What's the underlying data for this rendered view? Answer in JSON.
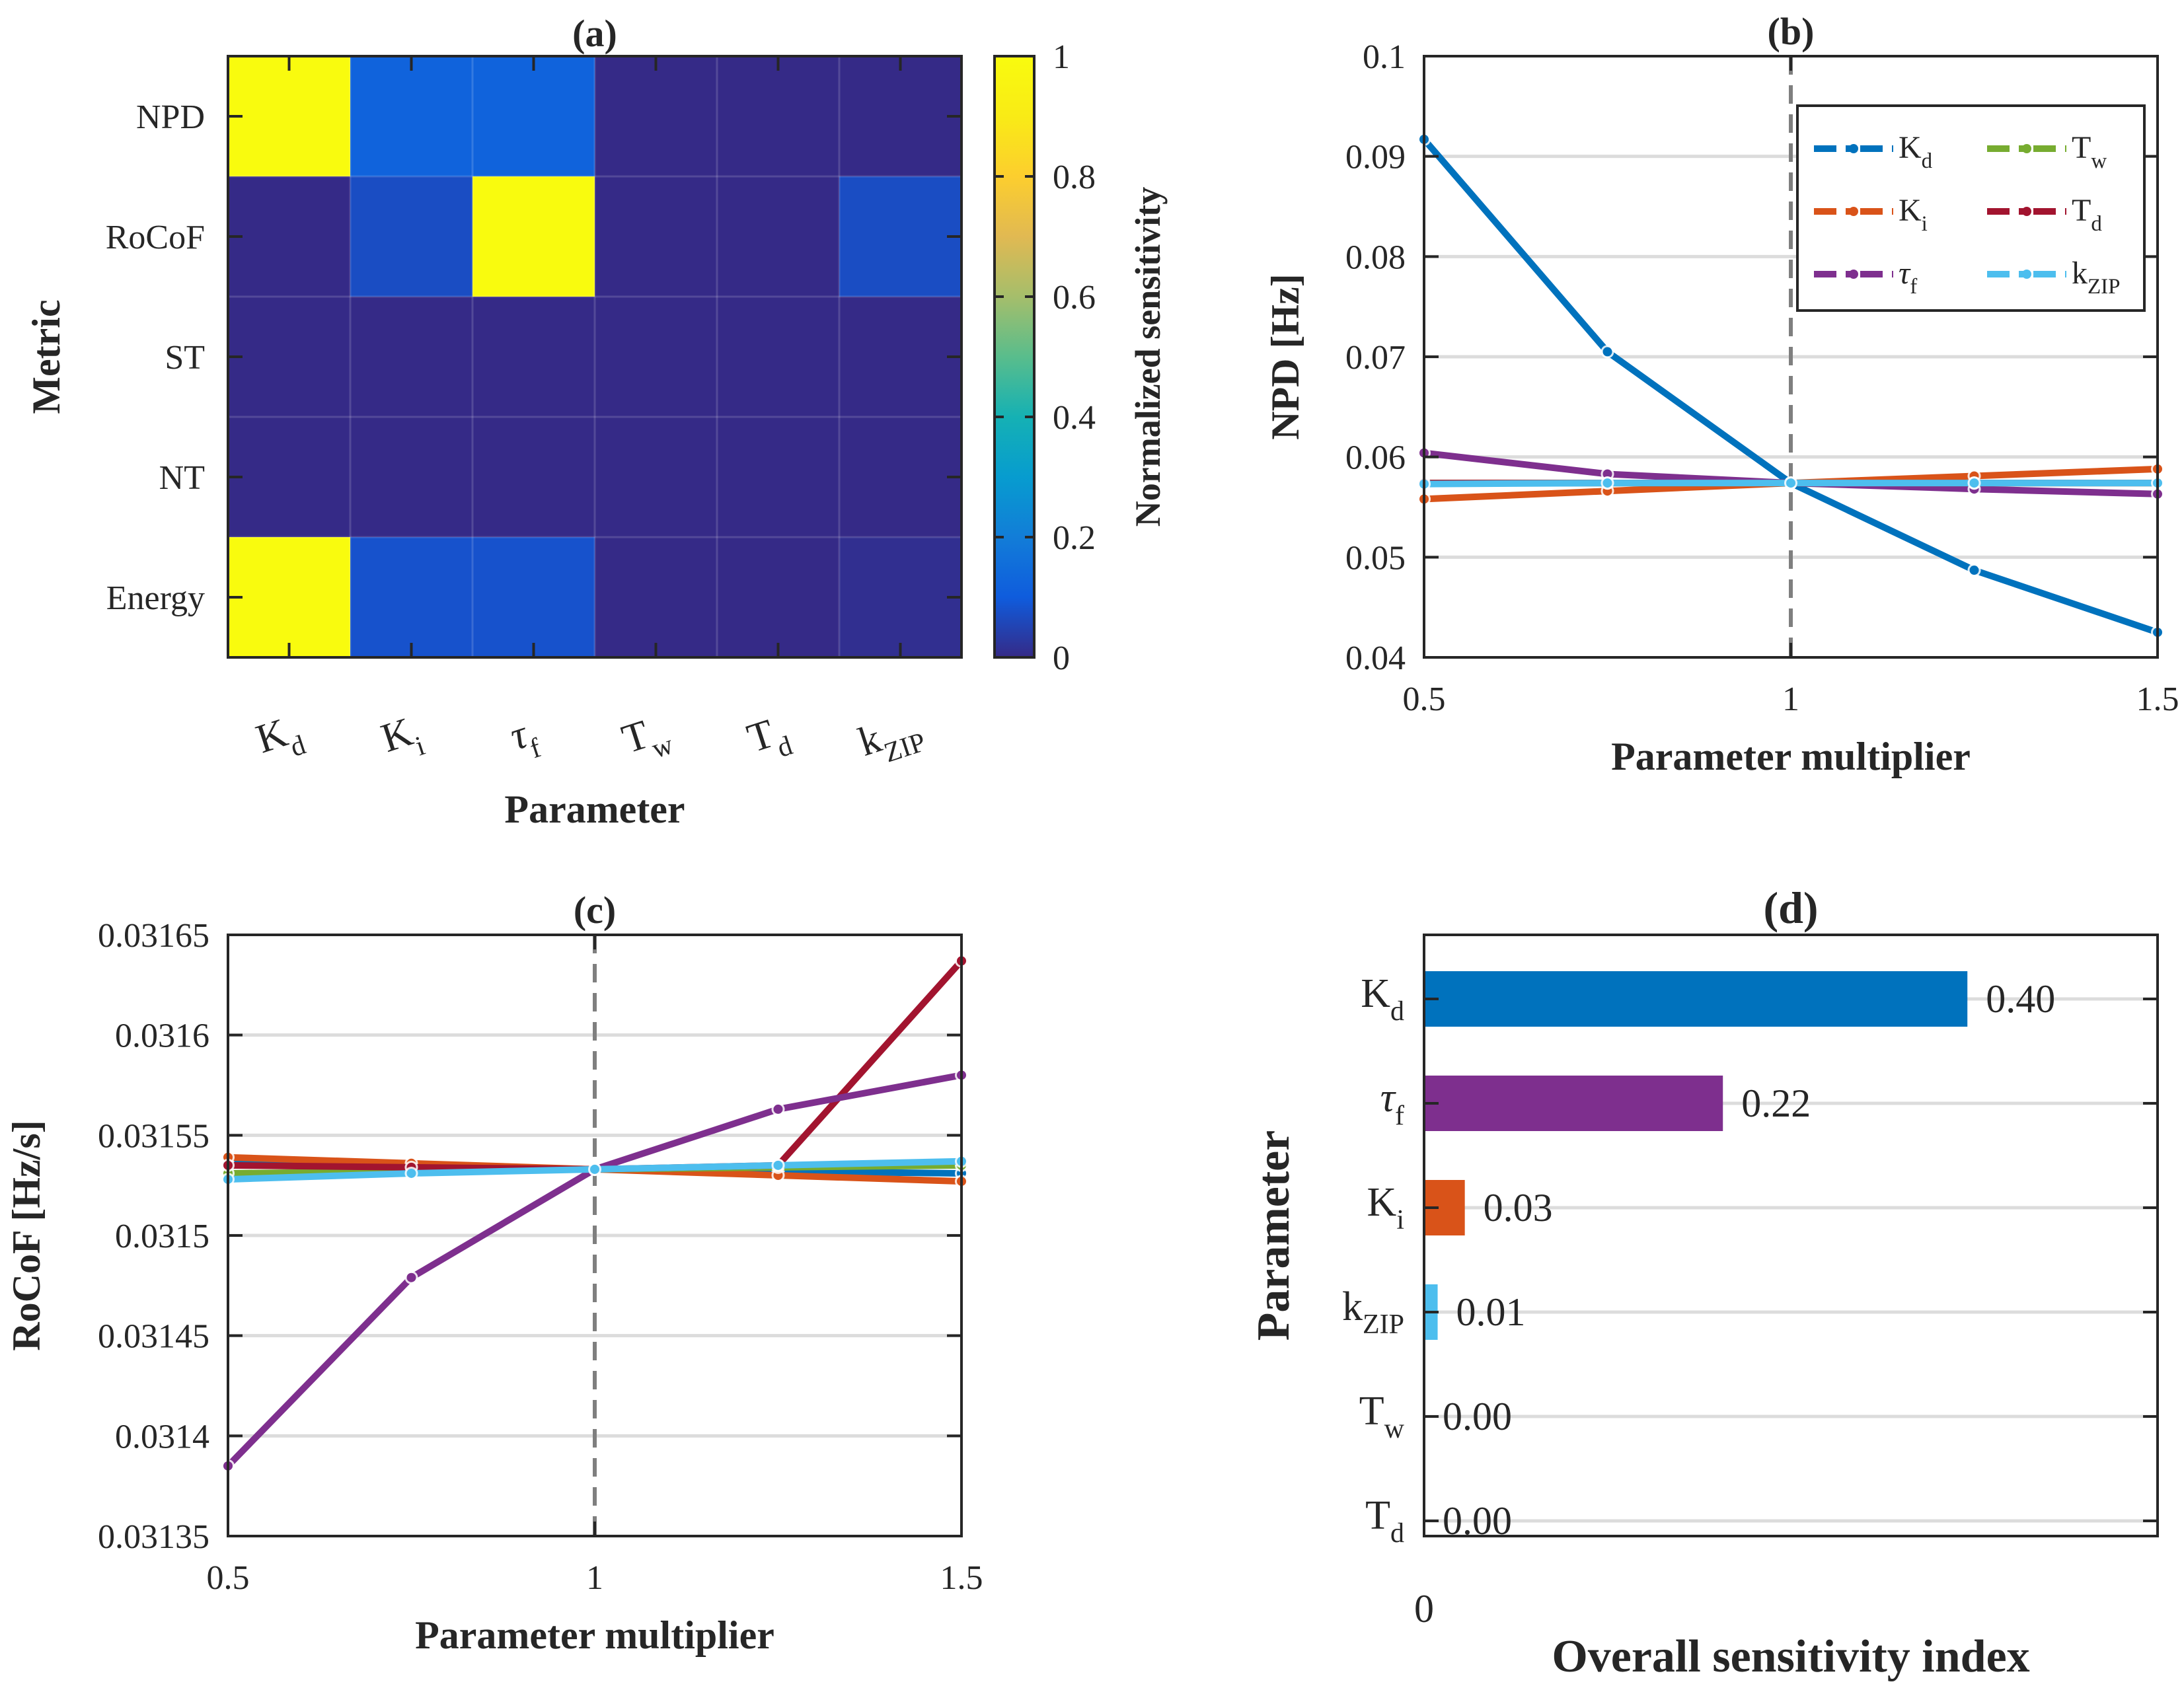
{
  "colors": {
    "Kd": "#0072BD",
    "Ki": "#D95319",
    "tau_f": "#7E2F8E",
    "Tw": "#77AC30",
    "Td": "#A2142F",
    "kZIP": "#4DBEEE"
  },
  "params": [
    {
      "key": "Kd",
      "base": "K",
      "sub": "d",
      "greek": false
    },
    {
      "key": "Ki",
      "base": "K",
      "sub": "i",
      "greek": false
    },
    {
      "key": "tau_f",
      "base": "τ",
      "sub": "f",
      "greek": true
    },
    {
      "key": "Tw",
      "base": "T",
      "sub": "w",
      "greek": false
    },
    {
      "key": "Td",
      "base": "T",
      "sub": "d",
      "greek": false
    },
    {
      "key": "kZIP",
      "base": "k",
      "sub": "ZIP",
      "greek": false
    }
  ],
  "chart_data": [
    {
      "panel": "(a)",
      "type": "heatmap",
      "title": "(a)",
      "xlabel": "Parameter",
      "ylabel": "Metric",
      "colorbar_label": "Normalized sensitivity",
      "colormap": "parula",
      "clim": [
        0,
        1
      ],
      "colorbar_ticks": [
        "0",
        "0.2",
        "0.4",
        "0.6",
        "0.8",
        "1"
      ],
      "rows": [
        "NPD",
        "RoCoF",
        "ST",
        "NT",
        "Energy"
      ],
      "cols": [
        "Kd",
        "Ki",
        "tau_f",
        "Tw",
        "Td",
        "kZIP"
      ],
      "values": [
        [
          1.0,
          0.12,
          0.12,
          0.0,
          0.0,
          0.0
        ],
        [
          0.0,
          0.07,
          1.0,
          0.0,
          0.0,
          0.07
        ],
        [
          0.0,
          0.0,
          0.0,
          0.0,
          0.0,
          0.0
        ],
        [
          0.0,
          0.0,
          0.0,
          0.0,
          0.0,
          0.0
        ],
        [
          1.0,
          0.08,
          0.08,
          0.0,
          0.0,
          0.01
        ]
      ]
    },
    {
      "panel": "(b)",
      "type": "line",
      "title": "(b)",
      "xlabel": "Parameter multiplier",
      "ylabel": "NPD [Hz]",
      "xlim": [
        0.5,
        1.5
      ],
      "ylim": [
        0.04,
        0.1
      ],
      "xticks": [
        "0.5",
        "1",
        "1.5"
      ],
      "yticks": [
        "0.04",
        "0.05",
        "0.06",
        "0.07",
        "0.08",
        "0.09",
        "0.1"
      ],
      "vline": 1,
      "grid": "horizontal",
      "legend": "top-right",
      "x": [
        0.5,
        0.75,
        1.0,
        1.25,
        1.5
      ],
      "series": [
        {
          "key": "Kd",
          "values": [
            0.0917,
            0.0705,
            0.0574,
            0.0487,
            0.0425
          ]
        },
        {
          "key": "Ki",
          "values": [
            0.0558,
            0.0566,
            0.0574,
            0.0581,
            0.0588
          ]
        },
        {
          "key": "tau_f",
          "values": [
            0.0604,
            0.0583,
            0.0574,
            0.0568,
            0.0563
          ]
        },
        {
          "key": "Tw",
          "values": [
            0.0574,
            0.0574,
            0.0574,
            0.0574,
            0.0574
          ]
        },
        {
          "key": "Td",
          "values": [
            0.0574,
            0.0574,
            0.0574,
            0.0574,
            0.0574
          ]
        },
        {
          "key": "kZIP",
          "values": [
            0.0573,
            0.0574,
            0.0574,
            0.0574,
            0.0574
          ]
        }
      ]
    },
    {
      "panel": "(c)",
      "type": "line",
      "title": "(c)",
      "xlabel": "Parameter multiplier",
      "ylabel": "RoCoF [Hz/s]",
      "xlim": [
        0.5,
        1.5
      ],
      "ylim": [
        0.03135,
        0.03165
      ],
      "xticks": [
        "0.5",
        "1",
        "1.5"
      ],
      "yticks": [
        "0.03135",
        "0.0314",
        "0.03145",
        "0.0315",
        "0.03155",
        "0.0316",
        "0.03165"
      ],
      "vline": 1,
      "grid": "horizontal",
      "x": [
        0.5,
        0.75,
        1.0,
        1.25,
        1.5
      ],
      "series": [
        {
          "key": "Kd",
          "values": [
            0.031536,
            0.031535,
            0.031533,
            0.031532,
            0.031531
          ]
        },
        {
          "key": "Ki",
          "values": [
            0.031539,
            0.031536,
            0.031533,
            0.03153,
            0.031527
          ]
        },
        {
          "key": "Tw",
          "values": [
            0.031531,
            0.031532,
            0.031533,
            0.031534,
            0.031535
          ]
        },
        {
          "key": "Td",
          "values": [
            0.031535,
            0.031534,
            0.031533,
            0.031535,
            0.031637
          ]
        },
        {
          "key": "tau_f",
          "values": [
            0.031385,
            0.031479,
            0.031533,
            0.031563,
            0.03158
          ]
        },
        {
          "key": "kZIP",
          "values": [
            0.031528,
            0.031531,
            0.031533,
            0.031535,
            0.031537
          ]
        }
      ]
    },
    {
      "panel": "(d)",
      "type": "bar",
      "orientation": "horizontal",
      "title": "(d)",
      "xlabel": "Overall sensitivity index",
      "ylabel": "Parameter",
      "xlim": [
        0,
        0.54
      ],
      "xticks": [
        "0"
      ],
      "grid": "horizontal",
      "categories": [
        "Kd",
        "tau_f",
        "Ki",
        "kZIP",
        "Tw",
        "Td"
      ],
      "values": [
        0.4,
        0.22,
        0.03,
        0.01,
        0.0,
        0.0
      ],
      "value_labels": [
        "0.40",
        "0.22",
        "0.03",
        "0.01",
        "0.00",
        "0.00"
      ]
    }
  ]
}
